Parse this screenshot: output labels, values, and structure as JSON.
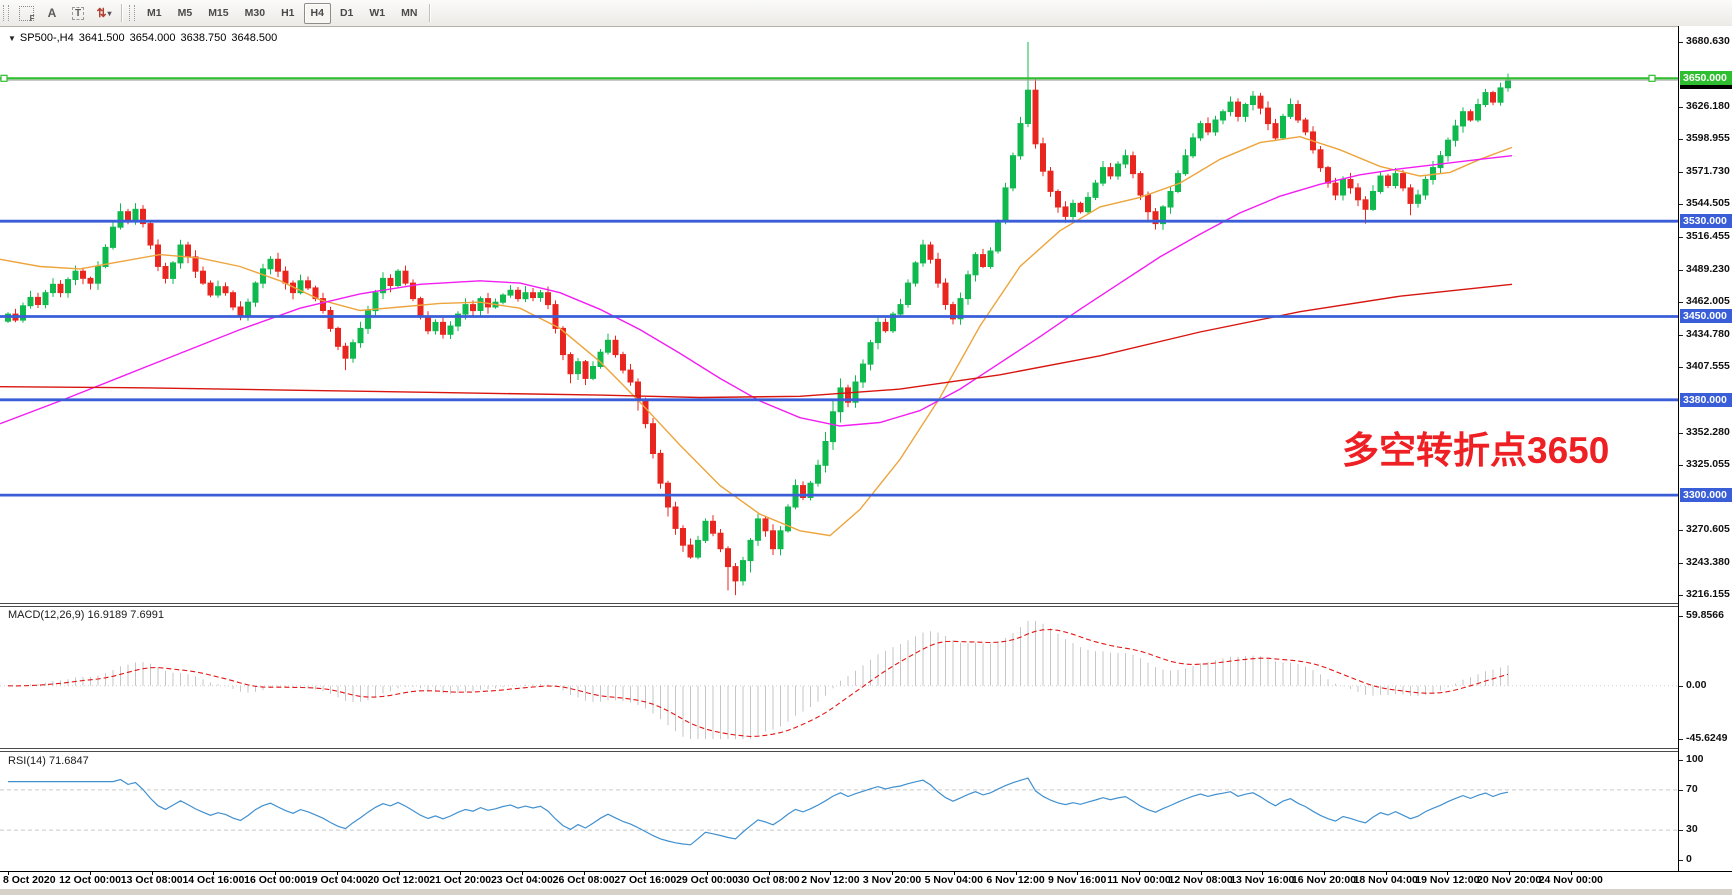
{
  "icons": {
    "title_arrow": "▼",
    "dropdown_caret": "▾"
  },
  "toolbar": {
    "tools": [
      {
        "name": "fibonacci-tool",
        "glyph": "F",
        "variant": "dotted"
      },
      {
        "name": "text-tool",
        "glyph": "A",
        "variant": "plain"
      },
      {
        "name": "label-tool",
        "glyph": "T",
        "variant": "dashed"
      },
      {
        "name": "arrows-tool",
        "glyph": "⇅",
        "variant": "caret"
      }
    ],
    "timeframes": [
      "M1",
      "M5",
      "M15",
      "M30",
      "H1",
      "H4",
      "D1",
      "W1",
      "MN"
    ],
    "active_timeframe": "H4"
  },
  "chart": {
    "title": {
      "symbol": "SP500-,H4",
      "open": "3641.500",
      "high": "3654.000",
      "low": "3638.750",
      "close": "3648.500"
    }
  },
  "annotation": {
    "text": "多空转折点3650",
    "color": "#ee2024"
  },
  "colors": {
    "candle_up": "#10b94e",
    "candle_down": "#e8261f",
    "hline_blue": "#3a5ed8",
    "hline_green": "#2fbe2f",
    "bid_line": "#a8a8a8",
    "ma_fast": "#eda43c",
    "ma_medium": "#f21ef2",
    "ma_slow": "#d8150f",
    "badge_black": "#000000",
    "axis_text": "#111111"
  },
  "chart_data": {
    "type": "candlestick",
    "symbol": "SP500-",
    "timeframe": "H4",
    "title": "SP500-,H4 3641.500 3654.000 3638.750 3648.500",
    "ylim": [
      3209.4,
      3693.1
    ],
    "grid": false,
    "price_axis_labels": [
      "3680.630",
      "3626.180",
      "3598.955",
      "3571.730",
      "3544.505",
      "3516.455",
      "3489.230",
      "3462.005",
      "3434.780",
      "3407.555",
      "3352.280",
      "3325.055",
      "3270.605",
      "3243.380",
      "3216.155"
    ],
    "horizontal_lines": [
      {
        "price": 3650,
        "label": "3650.000",
        "color": "#2fbe2f",
        "selected": true
      },
      {
        "price": 3530,
        "label": "3530.000",
        "color": "#3a5ed8",
        "selected": false
      },
      {
        "price": 3450,
        "label": "3450.000",
        "color": "#3a5ed8",
        "selected": false
      },
      {
        "price": 3380,
        "label": "3380.000",
        "color": "#3a5ed8",
        "selected": false
      },
      {
        "price": 3300,
        "label": "3300.000",
        "color": "#3a5ed8",
        "selected": false
      }
    ],
    "bid": {
      "price": 3648.5,
      "label": "3648.500"
    },
    "time_labels": [
      "8 Oct 2020",
      "12 Oct 00:00",
      "13 Oct 08:00",
      "14 Oct 16:00",
      "16 Oct 00:00",
      "19 Oct 04:00",
      "20 Oct 12:00",
      "21 Oct 20:00",
      "23 Oct 04:00",
      "26 Oct 08:00",
      "27 Oct 16:00",
      "29 Oct 00:00",
      "30 Oct 08:00",
      "2 Nov 12:00",
      "3 Nov 20:00",
      "5 Nov 04:00",
      "6 Nov 12:00",
      "9 Nov 16:00",
      "11 Nov 00:00",
      "12 Nov 08:00",
      "13 Nov 16:00",
      "16 Nov 20:00",
      "18 Nov 04:00",
      "19 Nov 12:00",
      "20 Nov 20:00",
      "24 Nov 00:00"
    ],
    "first_open": 3446,
    "closes": [
      3452,
      3447,
      3459,
      3466,
      3460,
      3470,
      3477,
      3470,
      3481,
      3488,
      3482,
      3478,
      3492,
      3508,
      3525,
      3538,
      3530,
      3540,
      3528,
      3510,
      3492,
      3482,
      3495,
      3510,
      3500,
      3488,
      3478,
      3468,
      3475,
      3470,
      3458,
      3450,
      3462,
      3478,
      3490,
      3498,
      3488,
      3478,
      3470,
      3480,
      3474,
      3465,
      3455,
      3440,
      3425,
      3415,
      3428,
      3440,
      3455,
      3470,
      3482,
      3476,
      3488,
      3478,
      3465,
      3450,
      3438,
      3445,
      3435,
      3442,
      3452,
      3460,
      3455,
      3465,
      3458,
      3462,
      3468,
      3472,
      3465,
      3470,
      3466,
      3470,
      3460,
      3440,
      3418,
      3402,
      3412,
      3398,
      3408,
      3420,
      3430,
      3418,
      3405,
      3395,
      3380,
      3360,
      3335,
      3310,
      3290,
      3272,
      3258,
      3248,
      3262,
      3278,
      3268,
      3255,
      3240,
      3228,
      3245,
      3262,
      3280,
      3270,
      3255,
      3270,
      3290,
      3308,
      3298,
      3310,
      3325,
      3345,
      3370,
      3390,
      3378,
      3395,
      3410,
      3428,
      3445,
      3438,
      3452,
      3460,
      3478,
      3495,
      3510,
      3498,
      3478,
      3460,
      3448,
      3465,
      3485,
      3502,
      3492,
      3505,
      3530,
      3558,
      3585,
      3612,
      3640,
      3595,
      3572,
      3555,
      3542,
      3534,
      3545,
      3538,
      3550,
      3562,
      3575,
      3568,
      3578,
      3585,
      3570,
      3552,
      3538,
      3528,
      3542,
      3555,
      3570,
      3585,
      3600,
      3612,
      3605,
      3615,
      3622,
      3630,
      3618,
      3628,
      3635,
      3625,
      3612,
      3600,
      3618,
      3628,
      3615,
      3605,
      3590,
      3575,
      3562,
      3552,
      3565,
      3558,
      3548,
      3540,
      3555,
      3568,
      3560,
      3570,
      3558,
      3545,
      3552,
      3565,
      3575,
      3585,
      3598,
      3610,
      3622,
      3615,
      3628,
      3638,
      3630,
      3642,
      3648.5
    ],
    "wick_overrides": {
      "15": [
        7,
        2
      ],
      "45": [
        3,
        10
      ],
      "75": [
        2,
        8
      ],
      "84": [
        3,
        9
      ],
      "88": [
        2,
        8
      ],
      "96": [
        2,
        20
      ],
      "97": [
        3,
        12
      ],
      "99": [
        2,
        10
      ],
      "109": [
        8,
        6
      ],
      "110": [
        9,
        7
      ],
      "111": [
        8,
        9
      ],
      "136": [
        40.6,
        3
      ],
      "137": [
        10,
        4
      ],
      "152": [
        3,
        9
      ],
      "181": [
        3,
        12
      ],
      "187": [
        3,
        10
      ],
      "200": [
        5.5,
        3.3
      ]
    },
    "moving_averages": [
      {
        "name": "ma-fast-orange",
        "color": "#eda43c",
        "points": [
          [
            0,
            3498
          ],
          [
            40,
            3492
          ],
          [
            80,
            3490
          ],
          [
            120,
            3496
          ],
          [
            160,
            3502
          ],
          [
            200,
            3499
          ],
          [
            240,
            3492
          ],
          [
            280,
            3480
          ],
          [
            320,
            3464
          ],
          [
            360,
            3455
          ],
          [
            400,
            3458
          ],
          [
            440,
            3461
          ],
          [
            480,
            3462
          ],
          [
            520,
            3457
          ],
          [
            560,
            3440
          ],
          [
            600,
            3412
          ],
          [
            640,
            3378
          ],
          [
            680,
            3342
          ],
          [
            720,
            3308
          ],
          [
            760,
            3284
          ],
          [
            800,
            3270
          ],
          [
            830,
            3266
          ],
          [
            860,
            3288
          ],
          [
            900,
            3330
          ],
          [
            940,
            3382
          ],
          [
            980,
            3442
          ],
          [
            1020,
            3492
          ],
          [
            1060,
            3522
          ],
          [
            1100,
            3542
          ],
          [
            1140,
            3550
          ],
          [
            1180,
            3562
          ],
          [
            1220,
            3582
          ],
          [
            1260,
            3596
          ],
          [
            1300,
            3601
          ],
          [
            1340,
            3590
          ],
          [
            1380,
            3576
          ],
          [
            1420,
            3568
          ],
          [
            1450,
            3571
          ],
          [
            1480,
            3582
          ],
          [
            1512,
            3592
          ]
        ]
      },
      {
        "name": "ma-medium-magenta",
        "color": "#f21ef2",
        "points": [
          [
            0,
            3360
          ],
          [
            60,
            3379
          ],
          [
            120,
            3399
          ],
          [
            180,
            3419
          ],
          [
            240,
            3439
          ],
          [
            300,
            3457
          ],
          [
            360,
            3469
          ],
          [
            420,
            3477
          ],
          [
            480,
            3480
          ],
          [
            520,
            3478
          ],
          [
            560,
            3470
          ],
          [
            600,
            3456
          ],
          [
            640,
            3439
          ],
          [
            680,
            3419
          ],
          [
            720,
            3398
          ],
          [
            760,
            3379
          ],
          [
            800,
            3365
          ],
          [
            840,
            3358
          ],
          [
            880,
            3361
          ],
          [
            920,
            3371
          ],
          [
            960,
            3389
          ],
          [
            1000,
            3411
          ],
          [
            1040,
            3433
          ],
          [
            1080,
            3456
          ],
          [
            1120,
            3478
          ],
          [
            1160,
            3500
          ],
          [
            1200,
            3519
          ],
          [
            1240,
            3537
          ],
          [
            1280,
            3551
          ],
          [
            1320,
            3561
          ],
          [
            1360,
            3569
          ],
          [
            1400,
            3574
          ],
          [
            1440,
            3578
          ],
          [
            1480,
            3582
          ],
          [
            1512,
            3585
          ]
        ]
      },
      {
        "name": "ma-slow-red",
        "color": "#d8150f",
        "points": [
          [
            0,
            3391
          ],
          [
            150,
            3390
          ],
          [
            300,
            3388
          ],
          [
            450,
            3386
          ],
          [
            600,
            3384
          ],
          [
            700,
            3382
          ],
          [
            800,
            3383
          ],
          [
            900,
            3389
          ],
          [
            1000,
            3401
          ],
          [
            1100,
            3417
          ],
          [
            1200,
            3437
          ],
          [
            1300,
            3454
          ],
          [
            1400,
            3467
          ],
          [
            1512,
            3477
          ]
        ]
      }
    ],
    "indicators": [
      {
        "name": "MACD",
        "label": "MACD(12,26,9)",
        "values_text": "16.9189 7.6991",
        "params": [
          12,
          26,
          9
        ],
        "axis_labels": [
          "59.8566",
          "0.00",
          "-45.6249"
        ],
        "ylim": [
          -53.2,
          67.4
        ],
        "colors": {
          "histogram": "#c6c6c6",
          "signal": "#e31515"
        }
      },
      {
        "name": "RSI",
        "label": "RSI(14)",
        "value_text": "71.6847",
        "period": 14,
        "axis_labels": [
          "100",
          "70",
          "30",
          "0"
        ],
        "levels": [
          70,
          30
        ],
        "ylim": [
          -10.8,
          107.8
        ],
        "color": "#4090d0"
      }
    ]
  }
}
